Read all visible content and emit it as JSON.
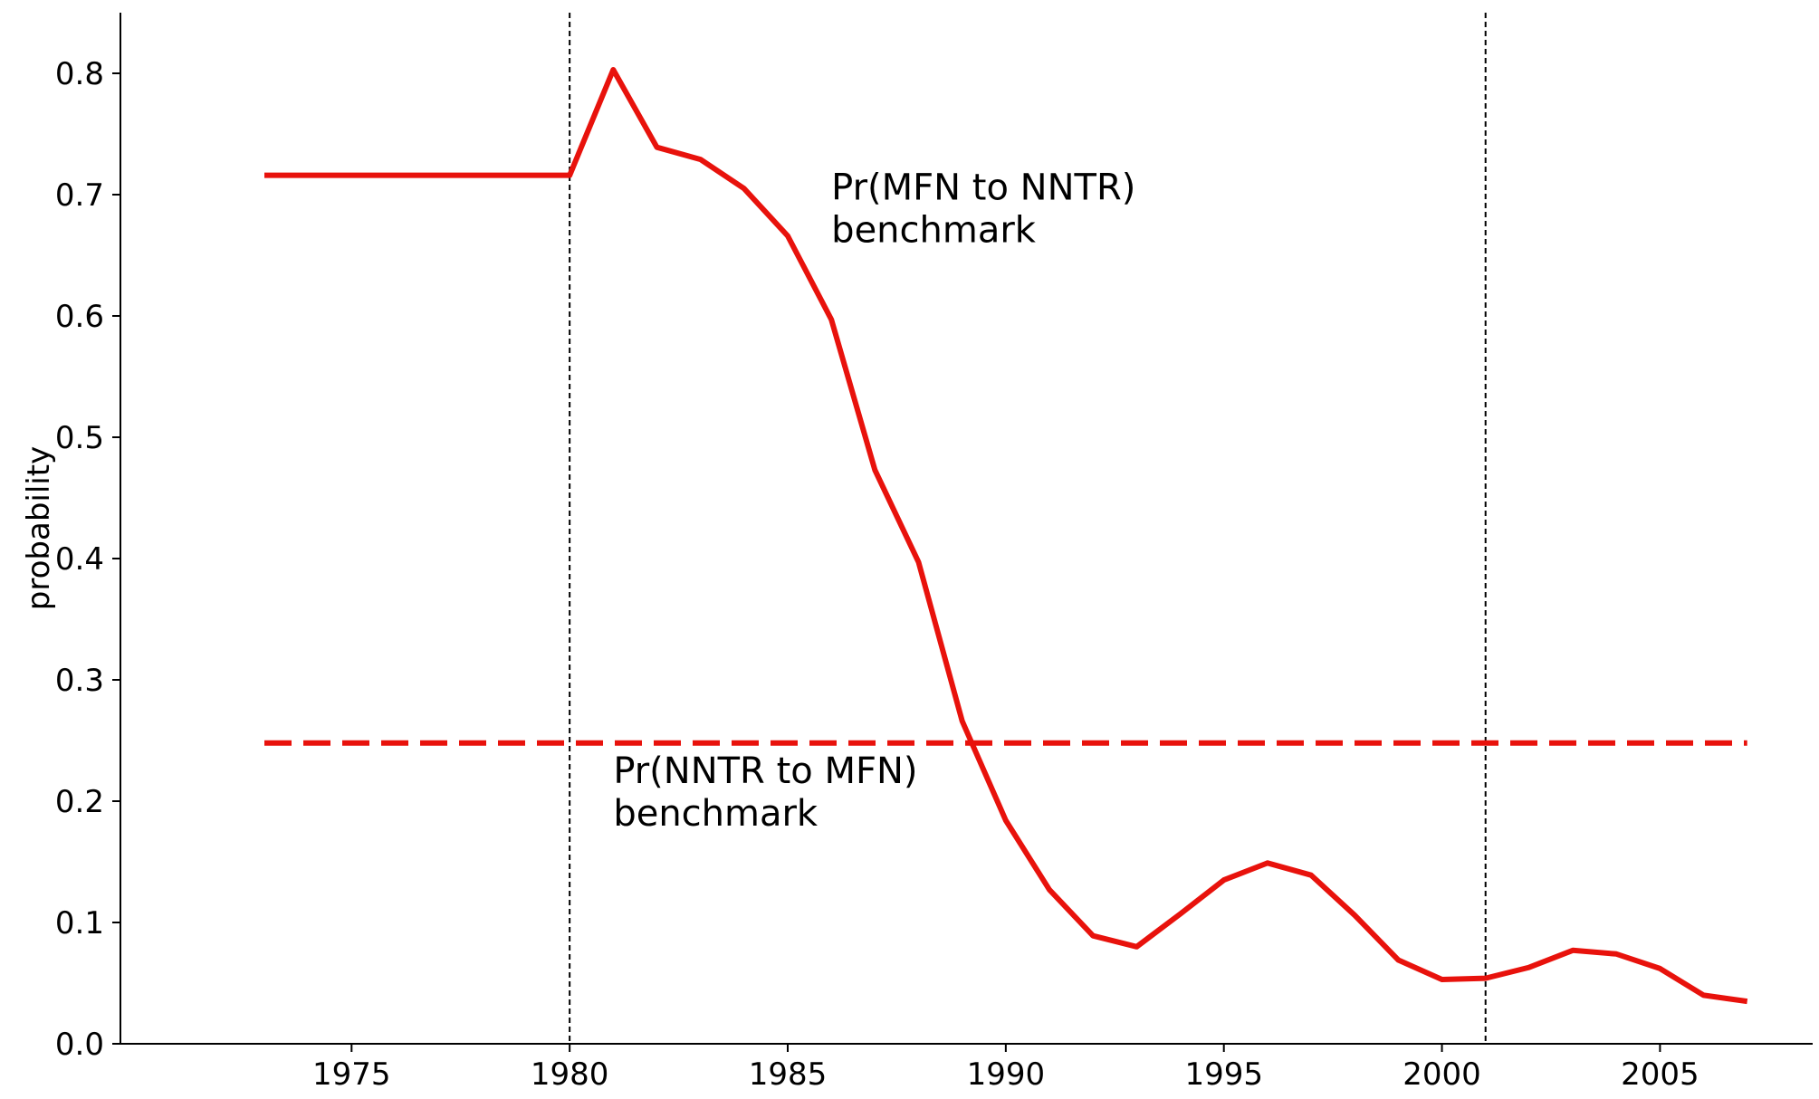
{
  "chart_data": {
    "type": "line",
    "title": "",
    "xlabel": "",
    "ylabel": "probability",
    "xlim": [
      1969.7,
      2008.5
    ],
    "ylim": [
      0.0,
      0.85
    ],
    "xticks": [
      1975,
      1980,
      1985,
      1990,
      1995,
      2000,
      2005
    ],
    "yticks": [
      0.0,
      0.1,
      0.2,
      0.3,
      0.4,
      0.5,
      0.6,
      0.7,
      0.8
    ],
    "grid": false,
    "colors": {
      "series": "#e8120c",
      "reference_lines": "#000000",
      "axes": "#000000"
    },
    "series": [
      {
        "style": "solid",
        "x": [
          1973,
          1974,
          1975,
          1976,
          1977,
          1978,
          1979,
          1980,
          1981,
          1982,
          1983,
          1984,
          1985,
          1986,
          1987,
          1988,
          1989,
          1990,
          1991,
          1992,
          1993,
          1994,
          1995,
          1996,
          1997,
          1998,
          1999,
          2000,
          2001,
          2002,
          2003,
          2004,
          2005,
          2006,
          2007
        ],
        "y": [
          0.716,
          0.716,
          0.716,
          0.716,
          0.716,
          0.716,
          0.716,
          0.716,
          0.803,
          0.739,
          0.729,
          0.705,
          0.666,
          0.597,
          0.473,
          0.397,
          0.266,
          0.184,
          0.127,
          0.089,
          0.08,
          0.107,
          0.135,
          0.149,
          0.139,
          0.106,
          0.069,
          0.053,
          0.054,
          0.063,
          0.077,
          0.074,
          0.062,
          0.04,
          0.035
        ]
      },
      {
        "style": "dashed",
        "x": [
          1973,
          2007
        ],
        "y": [
          0.248,
          0.248
        ]
      }
    ],
    "vlines": [
      {
        "x": 1980,
        "style": "dashed"
      },
      {
        "x": 2001,
        "style": "dashed"
      }
    ],
    "annotations": [
      {
        "lines": [
          "Pr(MFN to NNTR)",
          "benchmark"
        ],
        "x": 1986,
        "y": 0.696
      },
      {
        "lines": [
          "Pr(NNTR to MFN)",
          "benchmark"
        ],
        "x": 1981,
        "y": 0.215
      }
    ]
  }
}
